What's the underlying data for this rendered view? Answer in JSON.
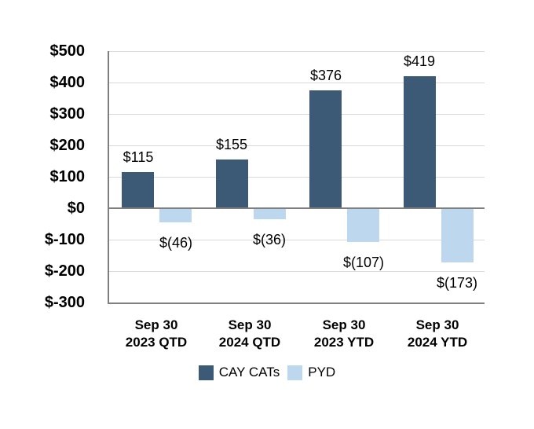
{
  "chart_data": {
    "type": "bar",
    "title": "",
    "categories": [
      {
        "line1": "Sep 30",
        "line2": "2023 QTD"
      },
      {
        "line1": "Sep 30",
        "line2": "2024 QTD"
      },
      {
        "line1": "Sep 30",
        "line2": "2023 YTD"
      },
      {
        "line1": "Sep 30",
        "line2": "2024 YTD"
      }
    ],
    "series": [
      {
        "name": "CAY CATs",
        "color": "#3C5A76",
        "values": [
          115,
          155,
          376,
          419
        ],
        "labels": [
          "$115",
          "$155",
          "$376",
          "$419"
        ]
      },
      {
        "name": "PYD",
        "color": "#BDD7EE",
        "values": [
          -46,
          -36,
          -107,
          -173
        ],
        "labels": [
          "$(46)",
          "$(36)",
          "$(107)",
          "$(173)"
        ]
      }
    ],
    "y_axis": {
      "min": -300,
      "max": 500,
      "step": 100,
      "tick_labels": [
        "$500",
        "$400",
        "$300",
        "$200",
        "$100",
        "$0",
        "$-100",
        "$-200",
        "$-300"
      ]
    },
    "grid": true,
    "legend_position": "bottom",
    "colors": {
      "background": "#FFFFFF",
      "axis_line": "#7F7F7F",
      "gridline": "#D9D9D9",
      "text": "#000000"
    }
  }
}
